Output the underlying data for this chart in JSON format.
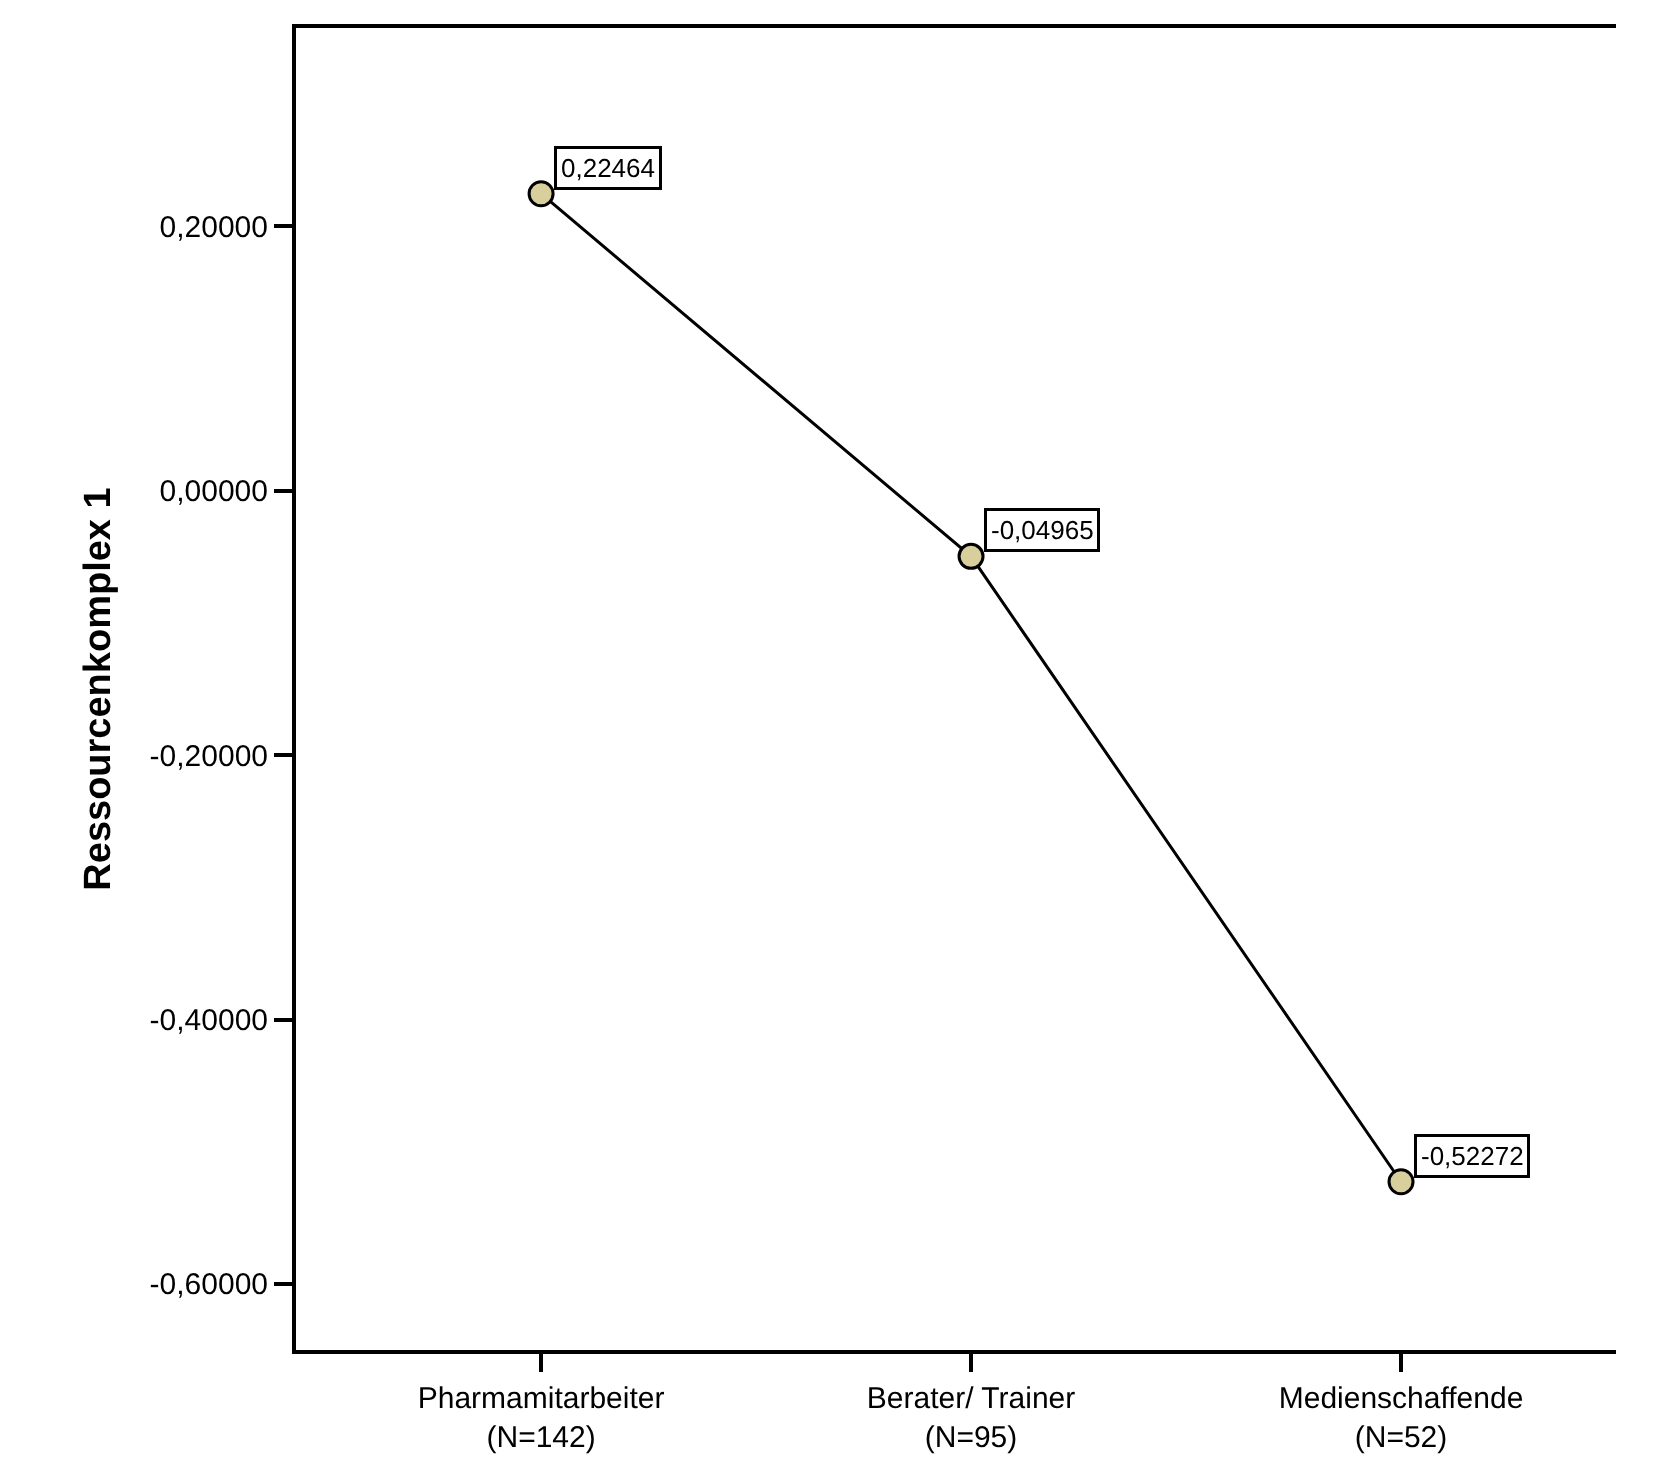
{
  "chart_data": {
    "type": "line",
    "ylabel": "Ressourcenkomplex 1",
    "categories": [
      "Pharmamitarbeiter\n(N=142)",
      "Berater/ Trainer\n(N=95)",
      "Medienschaffende\n(N=52)"
    ],
    "series": [
      {
        "color": "#d8cf9c",
        "values": [
          0.22464,
          -0.04965,
          -0.52272
        ],
        "value_labels": [
          "0,22464",
          "-0,04965",
          "-0,52272"
        ]
      }
    ],
    "marker": "circle",
    "line_style": "solid",
    "grid": false,
    "ylim": [
      -0.65,
      0.35
    ],
    "yticks": [
      {
        "value": 0.2,
        "label": "0,20000"
      },
      {
        "value": 0,
        "label": "0,00000"
      },
      {
        "value": -0.2,
        "label": "-0,20000"
      },
      {
        "value": -0.4,
        "label": "-0,40000"
      },
      {
        "value": -0.6,
        "label": "-0,60000"
      }
    ]
  }
}
